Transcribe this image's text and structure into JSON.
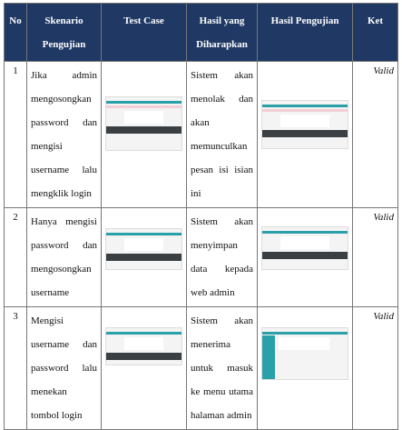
{
  "table": {
    "header": [
      "No",
      "Skenario Pengujian",
      "Test Case",
      "Hasil yang Diharapkan",
      "Hasil Pengujian",
      "Ket"
    ],
    "rows": [
      {
        "no": "1",
        "skenario": "Jika admin mengosongkan password dan mengisi username lalu mengklik login",
        "expected": "Sistem akan menolak dan akan memunculkan pesan isi isian ini",
        "ket": "Valid"
      },
      {
        "no": "2",
        "skenario": "Hanya mengisi password dan mengosongkan username",
        "expected": "Sistem akan menyimpan data kepada web admin",
        "ket": "Valid"
      },
      {
        "no": "3",
        "skenario": "Mengisi username dan password lalu menekan tombol login",
        "expected": "Sistem akan menerima untuk masuk ke menu utama halaman admin",
        "ket": "Valid"
      }
    ]
  }
}
